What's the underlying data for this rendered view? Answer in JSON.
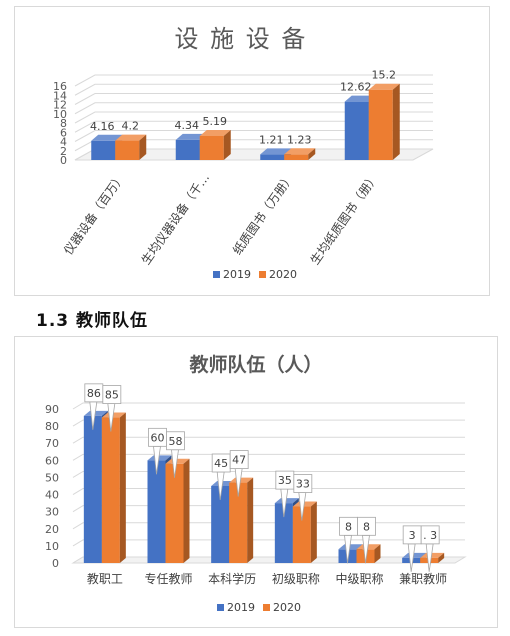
{
  "section_heading": "1.3 教师队伍",
  "colors": {
    "s2019": "#4472C4",
    "s2020": "#ED7D31"
  },
  "chart_data": [
    {
      "type": "bar",
      "title": "设 施 设 备",
      "categories": [
        "仪器设备（百万）",
        "生均仪器设备（千…",
        "纸质图书（万册）",
        "生均纸质图书（册）"
      ],
      "series": [
        {
          "name": "2019",
          "values": [
            4.16,
            4.34,
            1.21,
            12.62
          ]
        },
        {
          "name": "2020",
          "values": [
            4.2,
            5.19,
            1.23,
            15.2
          ]
        }
      ],
      "data_labels": {
        "2019": [
          "4.16",
          "4.34",
          "1.21",
          "12.62"
        ],
        "2020": [
          "4.2",
          "5.19",
          "1.23",
          "15.2"
        ]
      },
      "ylim": [
        0,
        16
      ],
      "yticks": [
        0,
        2,
        4,
        6,
        8,
        10,
        12,
        14,
        16
      ],
      "legend": "bottom",
      "grid": true
    },
    {
      "type": "bar",
      "title": "教师队伍（人）",
      "categories": [
        "教职工",
        "专任教师",
        "本科学历",
        "初级职称",
        "中级职称",
        "兼职教师"
      ],
      "series": [
        {
          "name": "2019",
          "values": [
            86,
            60,
            45,
            35,
            8,
            3
          ]
        },
        {
          "name": "2020",
          "values": [
            85,
            58,
            47,
            33,
            8,
            3
          ]
        }
      ],
      "data_labels": {
        "2019": [
          "86",
          "60",
          "45",
          "35",
          "8",
          "3"
        ],
        "2020": [
          "85",
          "58",
          "47",
          "33",
          "8",
          ". 3"
        ]
      },
      "ylim": [
        0,
        90
      ],
      "yticks": [
        0,
        10,
        20,
        30,
        40,
        50,
        60,
        70,
        80,
        90
      ],
      "legend": "bottom",
      "grid": true
    }
  ]
}
